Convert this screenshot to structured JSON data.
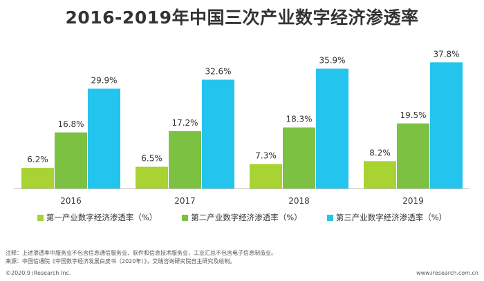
{
  "title": "2016-2019年中国三次产业数字经济渗透率",
  "chart_data": {
    "type": "bar",
    "categories": [
      "2016",
      "2017",
      "2018",
      "2019"
    ],
    "series": [
      {
        "name": "第一产业数字经济渗透率（%）",
        "color": "#a8d333",
        "values": [
          6.2,
          6.5,
          7.3,
          8.2
        ]
      },
      {
        "name": "第二产业数字经济渗透率（%）",
        "color": "#7dc142",
        "values": [
          16.8,
          17.2,
          18.3,
          19.5
        ]
      },
      {
        "name": "第三产业数字经济渗透率（%）",
        "color": "#23c4ee",
        "values": [
          29.9,
          32.6,
          35.9,
          37.8
        ]
      }
    ],
    "value_labels": [
      [
        "6.2%",
        "6.5%",
        "7.3%",
        "8.2%"
      ],
      [
        "16.8%",
        "17.2%",
        "18.3%",
        "19.5%"
      ],
      [
        "29.9%",
        "32.6%",
        "35.9%",
        "37.8%"
      ]
    ],
    "ylim": [
      0,
      42
    ],
    "legend_position": "bottom",
    "grid": false
  },
  "notes": {
    "line1": "注释：上述渗透率中服务业不包含信息通信服务业、软件和信息技术服务业，工业汇总不包含电子信息制造业。",
    "line2": "来源：中国信通院《中国数字经济发展白皮书（2020年）》，艾瑞咨询研究院自主研究及绘制。"
  },
  "footer": {
    "copyright": "©2020.9 iResearch Inc.",
    "website": "www.iresearch.com.cn"
  }
}
